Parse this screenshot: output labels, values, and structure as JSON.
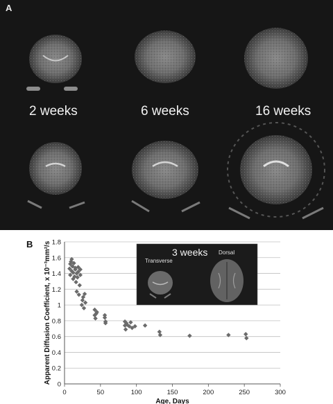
{
  "panel_a": {
    "letter": "A",
    "weeks": [
      "2 weeks",
      "6 weeks",
      "16 weeks"
    ]
  },
  "panel_b": {
    "letter": "B",
    "inset": {
      "title": "3 weeks",
      "left_label": "Transverse",
      "right_label": "Dorsal"
    }
  },
  "chart_data": {
    "type": "scatter",
    "xlabel": "Age, Days",
    "ylabel": "Apparent Diffusion Coefficient, x 10⁻³mm²/s",
    "xlim": [
      0,
      300
    ],
    "ylim": [
      0,
      1.8
    ],
    "xticks": [
      0,
      50,
      100,
      150,
      200,
      250,
      300
    ],
    "yticks": [
      0,
      0.2,
      0.4,
      0.6,
      0.8,
      1,
      1.2,
      1.4,
      1.6,
      1.8
    ],
    "ytick_labels": [
      "0",
      "0.2",
      "0.4",
      "0.6",
      "0.8",
      "1",
      "1.2",
      "1.4",
      "1.6",
      "1.8"
    ],
    "grid": true,
    "marker_color": "#6b6b6b",
    "series": [
      {
        "points": [
          [
            7,
            1.46
          ],
          [
            8,
            1.52
          ],
          [
            8,
            1.38
          ],
          [
            9,
            1.55
          ],
          [
            10,
            1.58
          ],
          [
            10,
            1.43
          ],
          [
            11,
            1.49
          ],
          [
            12,
            1.33
          ],
          [
            12,
            1.41
          ],
          [
            13,
            1.53
          ],
          [
            14,
            1.36
          ],
          [
            15,
            1.45
          ],
          [
            15,
            1.47
          ],
          [
            16,
            1.29
          ],
          [
            17,
            1.4
          ],
          [
            17,
            1.17
          ],
          [
            18,
            1.35
          ],
          [
            19,
            1.42
          ],
          [
            19,
            1.48
          ],
          [
            20,
            1.13
          ],
          [
            21,
            1.25
          ],
          [
            22,
            1.38
          ],
          [
            22,
            1.45
          ],
          [
            24,
            1.0
          ],
          [
            25,
            1.06
          ],
          [
            26,
            1.1
          ],
          [
            27,
            0.96
          ],
          [
            28,
            1.14
          ],
          [
            29,
            1.03
          ],
          [
            42,
            0.94
          ],
          [
            42,
            0.87
          ],
          [
            43,
            0.83
          ],
          [
            44,
            0.89
          ],
          [
            45,
            0.91
          ],
          [
            56,
            0.87
          ],
          [
            56,
            0.84
          ],
          [
            57,
            0.77
          ],
          [
            57,
            0.79
          ],
          [
            84,
            0.79
          ],
          [
            84,
            0.74
          ],
          [
            85,
            0.69
          ],
          [
            86,
            0.77
          ],
          [
            87,
            0.75
          ],
          [
            90,
            0.73
          ],
          [
            92,
            0.78
          ],
          [
            94,
            0.71
          ],
          [
            98,
            0.73
          ],
          [
            112,
            0.74
          ],
          [
            132,
            0.66
          ],
          [
            133,
            0.62
          ],
          [
            174,
            0.61
          ],
          [
            228,
            0.62
          ],
          [
            252,
            0.63
          ],
          [
            253,
            0.58
          ]
        ]
      }
    ]
  }
}
